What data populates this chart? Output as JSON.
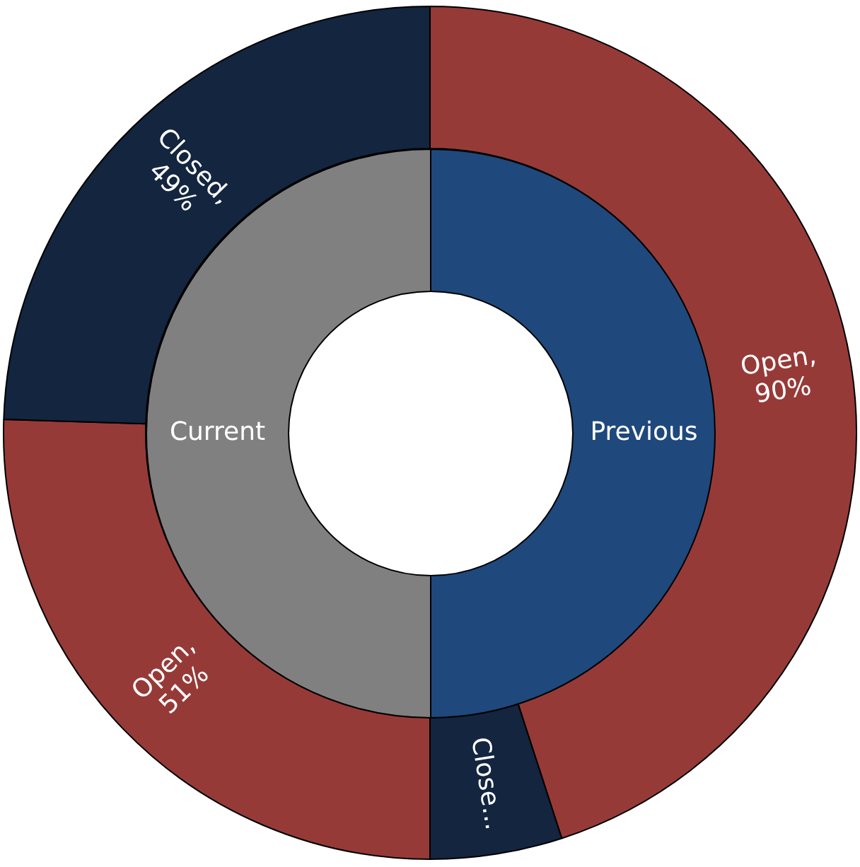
{
  "chart_data": [
    {
      "type": "donut",
      "categories": [
        null,
        null,
        null,
        null
      ],
      "values": [
        90,
        10,
        51,
        49
      ],
      "colors": [
        "#963a38",
        "#13253f",
        "#963a38",
        "#13253f"
      ],
      "value_labels": [
        "Open, 90%",
        "Close...",
        "Open, 51%",
        "Closed, 49%"
      ]
    },
    {
      "type": "donut",
      "categories": [
        "Previous",
        "Current"
      ],
      "values": [
        50,
        50
      ],
      "colors": [
        "#1f487c",
        "#808080"
      ]
    }
  ]
}
